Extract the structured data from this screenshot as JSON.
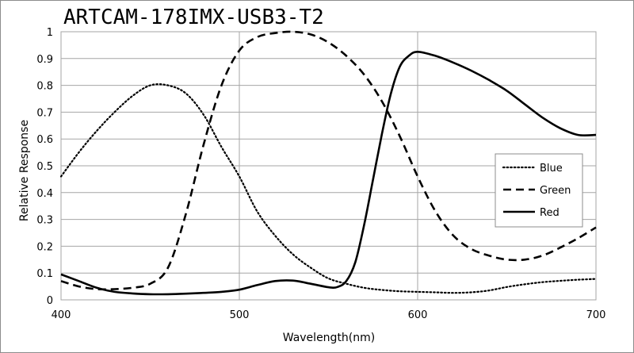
{
  "chart_data": {
    "type": "line",
    "title": "ARTCAM-178IMX-USB3-T2",
    "xlabel": "Wavelength(nm)",
    "ylabel": "Relative Response",
    "xlim": [
      400,
      700
    ],
    "ylim": [
      0,
      1
    ],
    "x_ticks": [
      "400",
      "500",
      "600",
      "700"
    ],
    "y_ticks": [
      "0",
      "0.1",
      "0.2",
      "0.3",
      "0.4",
      "0.5",
      "0.6",
      "0.7",
      "0.8",
      "0.9",
      "1"
    ],
    "grid": true,
    "legend_position": "right",
    "series": [
      {
        "name": "Blue",
        "style": "dotted",
        "x": [
          400,
          410,
          420,
          430,
          440,
          450,
          460,
          470,
          480,
          490,
          500,
          510,
          520,
          530,
          540,
          550,
          560,
          570,
          580,
          590,
          600,
          610,
          620,
          630,
          640,
          650,
          660,
          670,
          680,
          690,
          700
        ],
        "y": [
          0.46,
          0.55,
          0.63,
          0.7,
          0.76,
          0.8,
          0.8,
          0.77,
          0.69,
          0.57,
          0.46,
          0.33,
          0.24,
          0.17,
          0.12,
          0.08,
          0.06,
          0.045,
          0.037,
          0.032,
          0.03,
          0.028,
          0.026,
          0.028,
          0.035,
          0.048,
          0.058,
          0.066,
          0.071,
          0.075,
          0.078
        ]
      },
      {
        "name": "Green",
        "style": "dashed",
        "x": [
          400,
          410,
          420,
          430,
          440,
          450,
          460,
          470,
          480,
          490,
          500,
          510,
          520,
          530,
          540,
          550,
          560,
          570,
          580,
          590,
          600,
          610,
          620,
          630,
          640,
          650,
          660,
          670,
          680,
          690,
          700
        ],
        "y": [
          0.07,
          0.05,
          0.04,
          0.04,
          0.045,
          0.06,
          0.12,
          0.32,
          0.58,
          0.8,
          0.93,
          0.98,
          0.995,
          1.0,
          0.99,
          0.96,
          0.91,
          0.84,
          0.74,
          0.61,
          0.46,
          0.33,
          0.24,
          0.19,
          0.165,
          0.15,
          0.15,
          0.165,
          0.195,
          0.23,
          0.27
        ]
      },
      {
        "name": "Red",
        "style": "solid",
        "x": [
          400,
          410,
          420,
          430,
          440,
          450,
          460,
          470,
          480,
          490,
          500,
          510,
          520,
          530,
          540,
          550,
          555,
          560,
          565,
          570,
          575,
          580,
          585,
          590,
          595,
          600,
          610,
          620,
          630,
          640,
          650,
          660,
          670,
          680,
          690,
          700
        ],
        "y": [
          0.095,
          0.07,
          0.045,
          0.03,
          0.024,
          0.021,
          0.021,
          0.023,
          0.026,
          0.03,
          0.038,
          0.055,
          0.07,
          0.072,
          0.06,
          0.047,
          0.048,
          0.07,
          0.14,
          0.28,
          0.45,
          0.62,
          0.77,
          0.87,
          0.91,
          0.925,
          0.91,
          0.885,
          0.855,
          0.82,
          0.78,
          0.73,
          0.68,
          0.64,
          0.615,
          0.615
        ]
      }
    ]
  }
}
